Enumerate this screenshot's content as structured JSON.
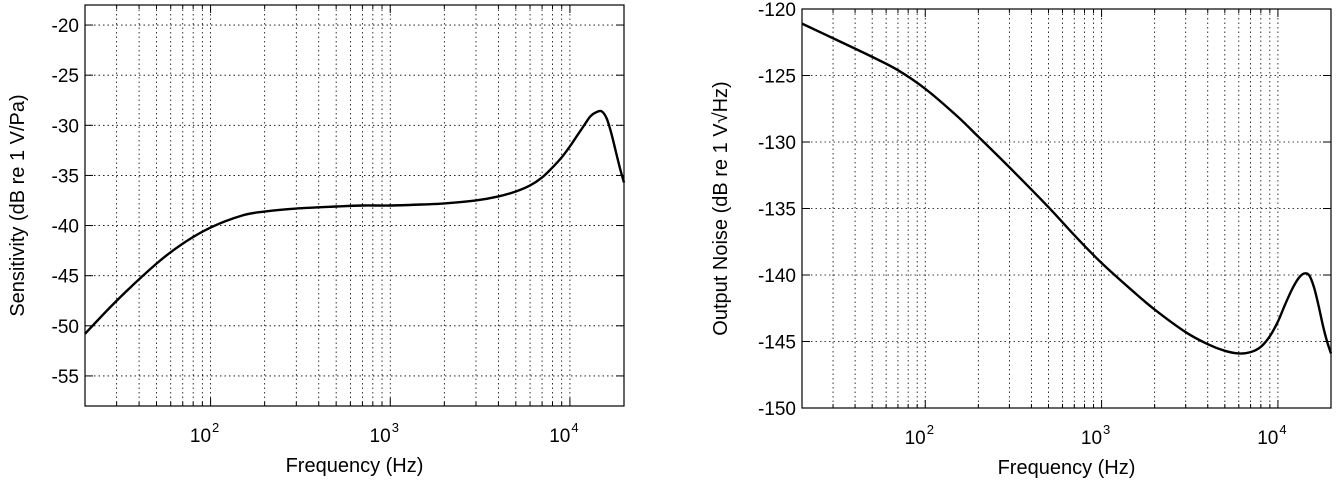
{
  "chart_data": [
    {
      "type": "line",
      "xlabel": "Frequency (Hz)",
      "ylabel": "Sensitivity (dB re 1 V/Pa)",
      "xscale": "log",
      "xlim": [
        20,
        20000
      ],
      "ylim": [
        -58,
        -18
      ],
      "grid": true,
      "xtick_labels": [
        {
          "base": "10",
          "exp": "2",
          "value": 100
        },
        {
          "base": "10",
          "exp": "3",
          "value": 1000
        },
        {
          "base": "10",
          "exp": "4",
          "value": 10000
        }
      ],
      "ytick_labels": [
        "-20",
        "-25",
        "-30",
        "-35",
        "-40",
        "-45",
        "-50",
        "-55"
      ],
      "series": [
        {
          "color": "#000000",
          "x": [
            20,
            30,
            50,
            70,
            100,
            150,
            200,
            300,
            500,
            700,
            1000,
            1500,
            2000,
            3000,
            4000,
            5000,
            6000,
            7000,
            8000,
            9000,
            10000,
            11000,
            12000,
            13000,
            14000,
            15000,
            16000,
            17000,
            18000,
            19000,
            20000
          ],
          "y": [
            -50.8,
            -47.5,
            -43.8,
            -41.8,
            -40.2,
            -39.0,
            -38.6,
            -38.3,
            -38.1,
            -38.0,
            -38.0,
            -37.9,
            -37.8,
            -37.5,
            -37.1,
            -36.6,
            -36.0,
            -35.2,
            -34.2,
            -33.2,
            -32.1,
            -31.0,
            -30.0,
            -29.1,
            -28.7,
            -28.6,
            -29.3,
            -30.8,
            -32.6,
            -34.3,
            -35.7
          ]
        }
      ]
    },
    {
      "type": "line",
      "xlabel": "Frequency (Hz)",
      "ylabel": "Output Noise (dB re 1 V√Hz)",
      "xscale": "log",
      "xlim": [
        20,
        20000
      ],
      "ylim": [
        -150,
        -120
      ],
      "grid": true,
      "xtick_labels": [
        {
          "base": "10",
          "exp": "2",
          "value": 100
        },
        {
          "base": "10",
          "exp": "3",
          "value": 1000
        },
        {
          "base": "10",
          "exp": "4",
          "value": 10000
        }
      ],
      "ytick_labels": [
        "-120",
        "-125",
        "-130",
        "-135",
        "-140",
        "-145",
        "-150"
      ],
      "series": [
        {
          "color": "#000000",
          "x": [
            20,
            30,
            50,
            70,
            100,
            150,
            200,
            300,
            500,
            700,
            1000,
            1500,
            2000,
            3000,
            4000,
            5000,
            6000,
            7000,
            8000,
            9000,
            10000,
            11000,
            12000,
            13000,
            14000,
            15000,
            16000,
            17000,
            18000,
            19000,
            20000
          ],
          "y": [
            -121.1,
            -122.2,
            -123.6,
            -124.6,
            -126.0,
            -128.0,
            -129.6,
            -131.9,
            -134.9,
            -137.0,
            -139.1,
            -141.2,
            -142.6,
            -144.3,
            -145.2,
            -145.7,
            -145.9,
            -145.8,
            -145.4,
            -144.6,
            -143.5,
            -142.2,
            -141.1,
            -140.3,
            -139.9,
            -140.0,
            -140.9,
            -142.3,
            -143.8,
            -145.0,
            -145.9
          ]
        }
      ]
    }
  ]
}
